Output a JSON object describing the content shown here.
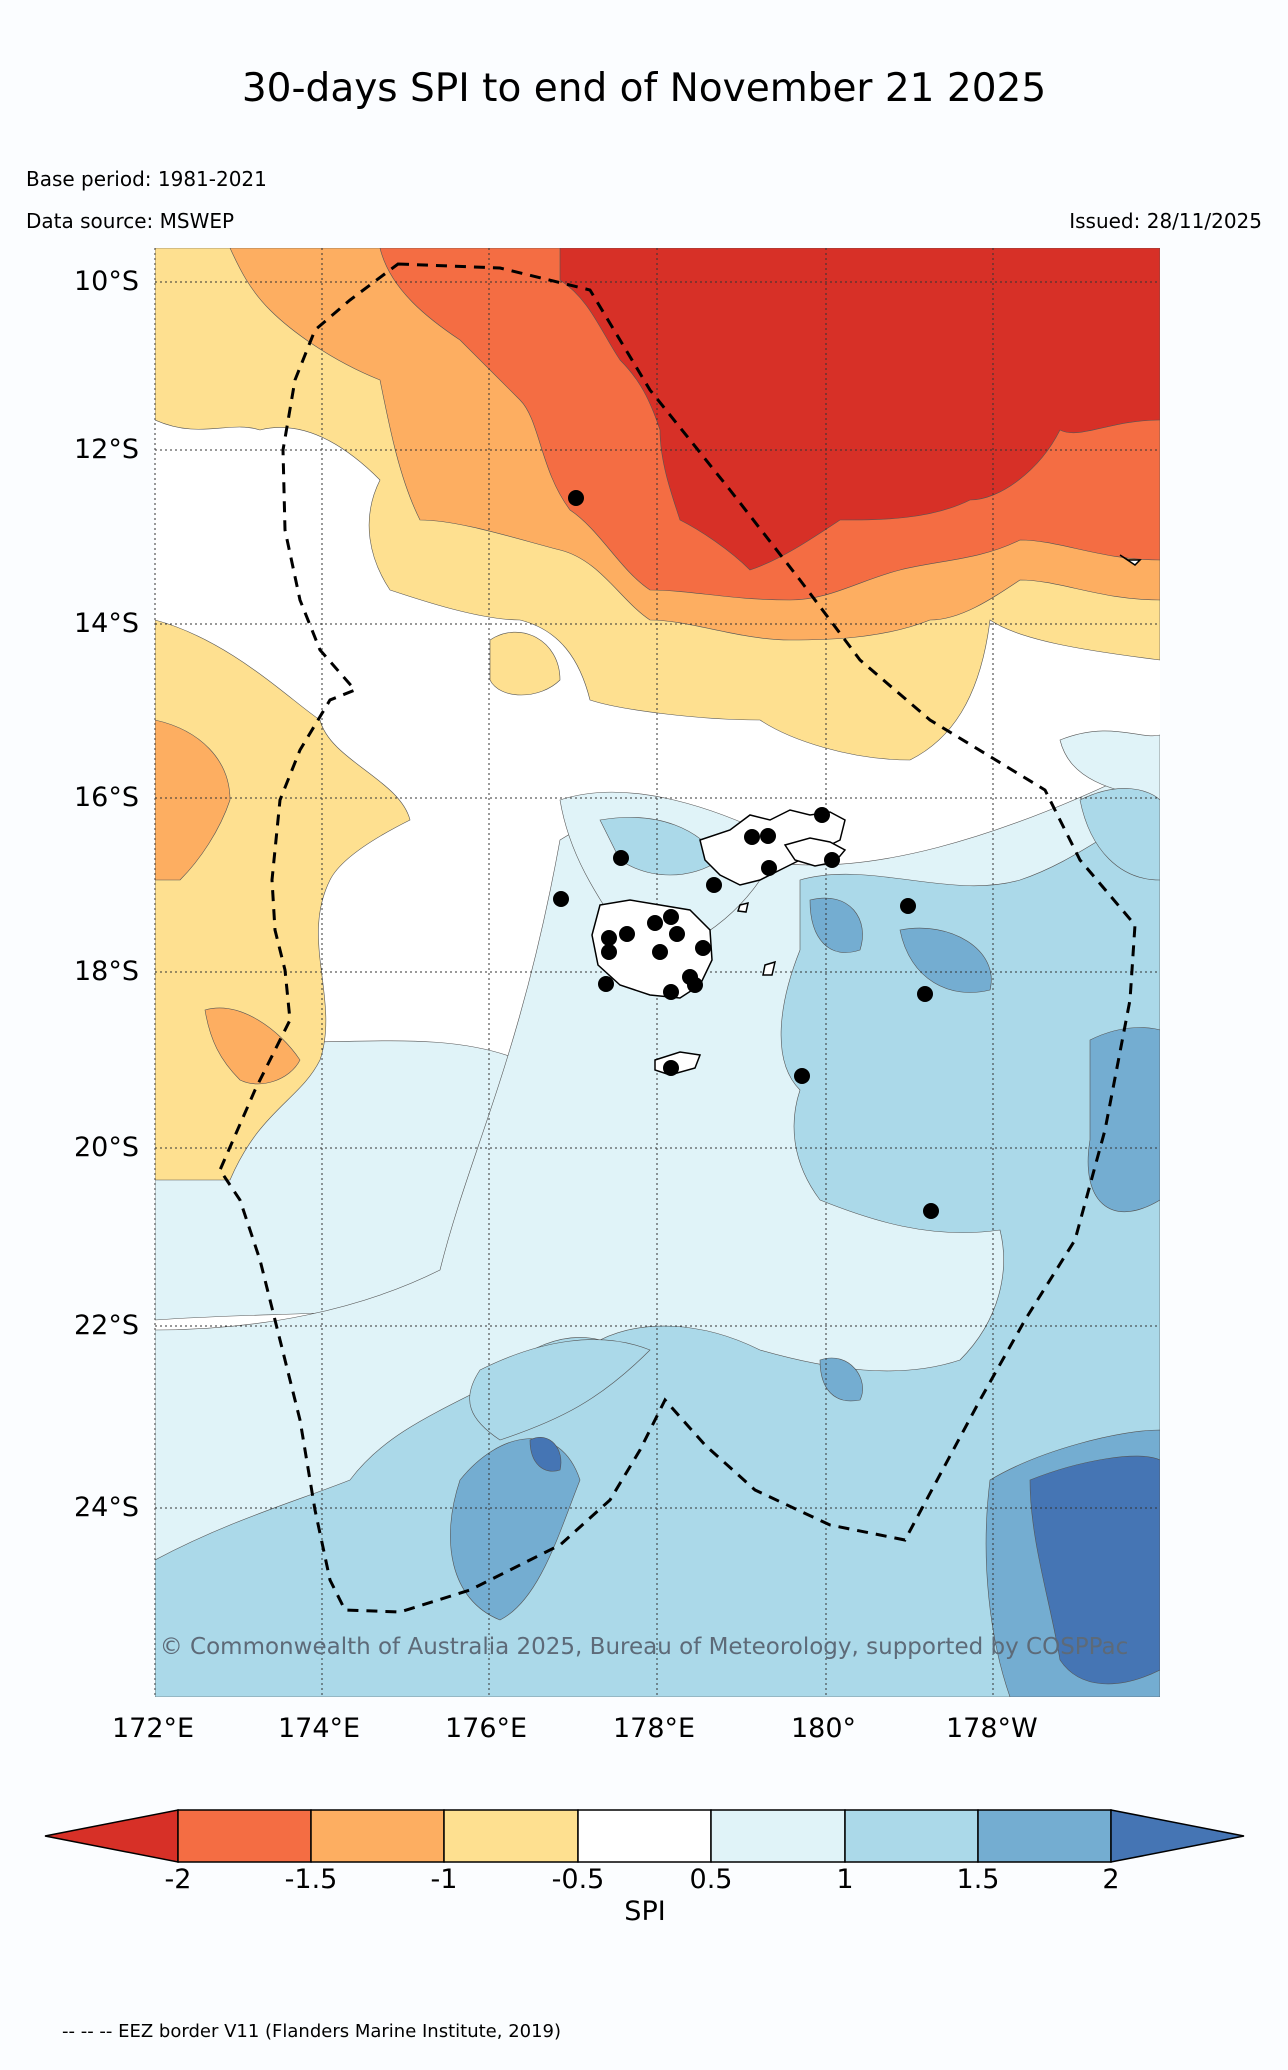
{
  "header": {
    "title": "30-days SPI to end of November 21 2025",
    "base_period": "Base period: 1981-2021",
    "data_source": "Data source: MSWEP",
    "issued": "Issued: 28/11/2025"
  },
  "axes": {
    "lat_labels": [
      "10°S",
      "12°S",
      "14°S",
      "16°S",
      "18°S",
      "20°S",
      "22°S",
      "24°S"
    ],
    "lon_labels": [
      "172°E",
      "174°E",
      "176°E",
      "178°E",
      "180°",
      "178°W"
    ]
  },
  "colors": {
    "le_-2": "#d73027",
    "-2_-1.5": "#f46d43",
    "-1.5_-1": "#fdae61",
    "-1_-0.5": "#fee090",
    "-0.5_0.5": "#ffffff",
    "0.5_1": "#e0f3f8",
    "1_1.5": "#abd9e9",
    "1.5_2": "#74add1",
    "ge_2": "#4575b4"
  },
  "colorbar": {
    "ticks": [
      "-2",
      "-1.5",
      "-1",
      "-0.5",
      "0.5",
      "1",
      "1.5",
      "2"
    ],
    "label": "SPI"
  },
  "stations_count_visible": 28,
  "footer": {
    "copyright": "© Commonwealth of Australia 2025, Bureau of Meteorology, supported by COSPPac",
    "eez_note": "-- -- -- EEZ border V11 (Flanders Marine Institute, 2019)"
  }
}
